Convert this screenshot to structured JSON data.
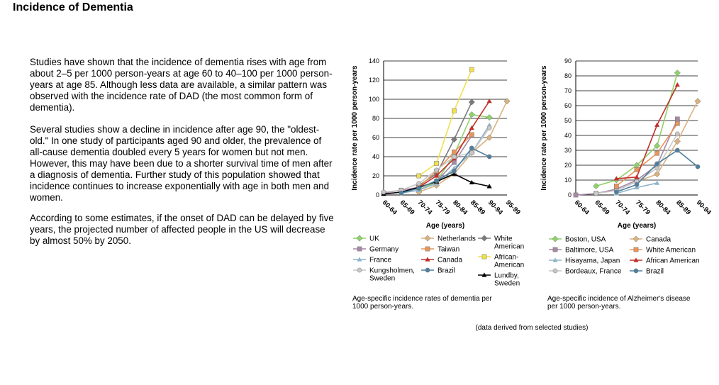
{
  "page": {
    "title": "Incidence of Dementia",
    "paragraphs": [
      "Studies have shown that the incidence of dementia rises with age from about 2–5 per 1000 person-years at age 60 to 40–100 per 1000 person-years at age 85. Although less data are available, a similar pattern was observed with the incidence rate of DAD (the most common form of dementia).",
      "Several studies show a decline in incidence after age 90, the \"oldest-old.\" In one study of participants aged 90 and older, the prevalence of all-cause dementia doubled every 5 years for women but not men. However, this may have been due to a shorter survival time of men after a diagnosis of dementia. Further study of this population showed that incidence continues to increase exponentially with age in both men and women.",
      "According to some estimates, if the onset of DAD can be delayed by five years, the projected number of affected people in the US will decrease by almost 50% by 2050."
    ],
    "footnote": "(data derived from selected studies)"
  },
  "chart_data": [
    {
      "type": "line",
      "ylabel": "Incidence rate per 1000 person-years",
      "xlabel": "Age (years)",
      "categories": [
        "60-64",
        "65-69",
        "70-74",
        "75-79",
        "80-84",
        "85-89",
        "90-94",
        "95-99"
      ],
      "ylim": [
        0,
        140
      ],
      "yticks": [
        0,
        20,
        40,
        60,
        80,
        100,
        120,
        140
      ],
      "grid": true,
      "caption": "Age-specific incidence rates of dementia per 1000 person-years.",
      "legend_placement": "bottom",
      "series": [
        {
          "name": "UK",
          "color": "#8fd16a",
          "marker": "diamond",
          "values": [
            null,
            null,
            5,
            14,
            42,
            84,
            81,
            null
          ]
        },
        {
          "name": "Netherlands",
          "color": "#d9b27f",
          "marker": "diamond",
          "values": [
            null,
            null,
            3,
            10,
            22,
            44,
            60,
            98
          ]
        },
        {
          "name": "White American",
          "color": "#7a7a7a",
          "marker": "diamond",
          "values": [
            null,
            null,
            10,
            22,
            58,
            97,
            null,
            null
          ]
        },
        {
          "name": "Germany",
          "color": "#a788a5",
          "marker": "square",
          "values": [
            2,
            5,
            8,
            14,
            34,
            62,
            null,
            null
          ]
        },
        {
          "name": "Taiwan",
          "color": "#e8955a",
          "marker": "square",
          "values": [
            null,
            null,
            8,
            25,
            45,
            63,
            null,
            null
          ]
        },
        {
          "name": "African-American",
          "color": "#f0e050",
          "marker": "square",
          "values": [
            null,
            null,
            20,
            33,
            88,
            131,
            null,
            null
          ]
        },
        {
          "name": "France",
          "color": "#8fb4c9",
          "marker": "triangle",
          "values": [
            null,
            2,
            5,
            12,
            28,
            44,
            73,
            null
          ]
        },
        {
          "name": "Canada",
          "color": "#c0302a",
          "marker": "triangle",
          "values": [
            null,
            null,
            8,
            20,
            38,
            70,
            98,
            null
          ]
        },
        {
          "name": "Lundby, Sweden",
          "color": "#000000",
          "marker": "triangle",
          "values": [
            1,
            3,
            8,
            14,
            22,
            13,
            9,
            null
          ]
        },
        {
          "name": "Kungsholmen, Sweden",
          "color": "#c8c8c8",
          "marker": "circle",
          "values": [
            3,
            5,
            12,
            26,
            40,
            44,
            70,
            null
          ]
        },
        {
          "name": "Brazil",
          "color": "#4e7fa0",
          "marker": "circle",
          "values": [
            null,
            2,
            7,
            15,
            25,
            49,
            40,
            null
          ]
        }
      ]
    },
    {
      "type": "line",
      "ylabel": "Incidence rate per 1000 person-years",
      "xlabel": "Age (years)",
      "categories": [
        "60-64",
        "65-69",
        "70-74",
        "75-79",
        "80-84",
        "85-89",
        "90-94"
      ],
      "ylim": [
        0,
        90
      ],
      "yticks": [
        0,
        10,
        20,
        30,
        40,
        50,
        60,
        70,
        80,
        90
      ],
      "grid": true,
      "caption": "Age-specific incidence of Alzheimer's disease per 1000 person-years.",
      "legend_placement": "bottom",
      "series": [
        {
          "name": "Boston, USA",
          "color": "#8fd16a",
          "marker": "diamond",
          "values": [
            null,
            6,
            10,
            20,
            33,
            82,
            null
          ]
        },
        {
          "name": "Canada",
          "color": "#d9b27f",
          "marker": "diamond",
          "values": [
            null,
            null,
            3,
            9,
            14,
            36,
            63
          ]
        },
        {
          "name": "Baltimore, USA",
          "color": "#a788a5",
          "marker": "square",
          "values": [
            0,
            1,
            4,
            10,
            20,
            51,
            null
          ]
        },
        {
          "name": "White American",
          "color": "#e8955a",
          "marker": "square",
          "values": [
            null,
            null,
            6,
            17,
            28,
            48,
            null
          ]
        },
        {
          "name": "Hisayama, Japan",
          "color": "#8fb4c9",
          "marker": "triangle",
          "values": [
            null,
            null,
            1,
            5,
            8,
            null,
            null
          ]
        },
        {
          "name": "African American",
          "color": "#c0302a",
          "marker": "triangle",
          "values": [
            null,
            null,
            11,
            12,
            47,
            74,
            null
          ]
        },
        {
          "name": "Bordeaux, France",
          "color": "#c8c8c8",
          "marker": "circle",
          "values": [
            null,
            1,
            3,
            9,
            18,
            41,
            null
          ]
        },
        {
          "name": "Brazil",
          "color": "#4e7fa0",
          "marker": "circle",
          "values": [
            null,
            null,
            2,
            7,
            21,
            30,
            19
          ]
        }
      ]
    }
  ]
}
